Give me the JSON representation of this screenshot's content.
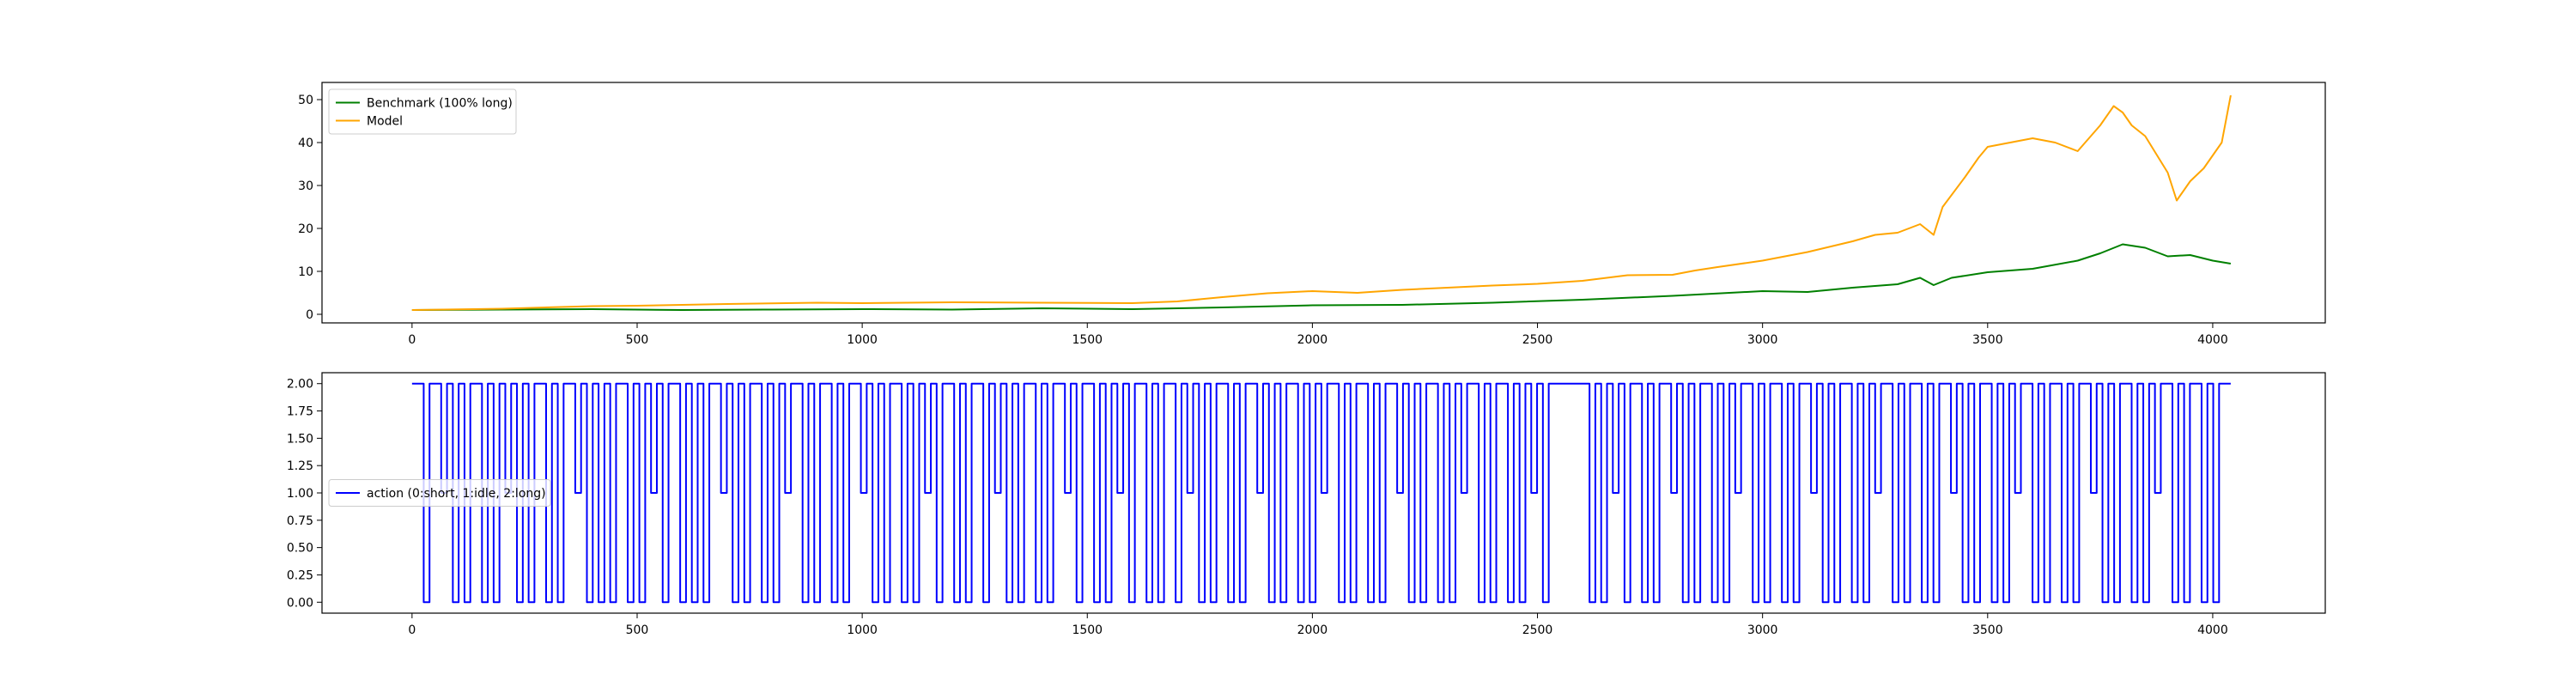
{
  "chart_data": [
    {
      "type": "line",
      "xlim": [
        -200,
        4250
      ],
      "ylim": [
        -2,
        54
      ],
      "x_ticks": [
        0,
        500,
        1000,
        1500,
        2000,
        2500,
        3000,
        3500,
        4000
      ],
      "y_ticks": [
        0,
        10,
        20,
        30,
        40,
        50
      ],
      "x_tick_labels": [
        "0",
        "500",
        "1000",
        "1500",
        "2000",
        "2500",
        "3000",
        "3500",
        "4000"
      ],
      "y_tick_labels": [
        "0",
        "10",
        "20",
        "30",
        "40",
        "50"
      ],
      "legend_position": "upper left",
      "series": [
        {
          "name": "Benchmark (100% long)",
          "color": "#008000",
          "points": [
            [
              0,
              1.0
            ],
            [
              200,
              1.1
            ],
            [
              400,
              1.2
            ],
            [
              600,
              1.0
            ],
            [
              800,
              1.1
            ],
            [
              1000,
              1.2
            ],
            [
              1200,
              1.1
            ],
            [
              1400,
              1.4
            ],
            [
              1600,
              1.2
            ],
            [
              1800,
              1.6
            ],
            [
              2000,
              2.1
            ],
            [
              2200,
              2.2
            ],
            [
              2400,
              2.7
            ],
            [
              2600,
              3.4
            ],
            [
              2800,
              4.3
            ],
            [
              3000,
              5.4
            ],
            [
              3100,
              5.2
            ],
            [
              3200,
              6.2
            ],
            [
              3300,
              7.0
            ],
            [
              3350,
              8.5
            ],
            [
              3380,
              6.8
            ],
            [
              3420,
              8.5
            ],
            [
              3500,
              9.8
            ],
            [
              3600,
              10.6
            ],
            [
              3700,
              12.5
            ],
            [
              3750,
              14.2
            ],
            [
              3800,
              16.3
            ],
            [
              3850,
              15.5
            ],
            [
              3900,
              13.5
            ],
            [
              3950,
              13.8
            ],
            [
              4000,
              12.5
            ],
            [
              4040,
              11.8
            ]
          ]
        },
        {
          "name": "Model",
          "color": "#ffa500",
          "points": [
            [
              0,
              1.0
            ],
            [
              200,
              1.3
            ],
            [
              400,
              1.9
            ],
            [
              500,
              2.0
            ],
            [
              700,
              2.4
            ],
            [
              900,
              2.7
            ],
            [
              1000,
              2.6
            ],
            [
              1200,
              2.8
            ],
            [
              1400,
              2.7
            ],
            [
              1600,
              2.6
            ],
            [
              1700,
              3.0
            ],
            [
              1800,
              4.0
            ],
            [
              1900,
              4.9
            ],
            [
              2000,
              5.4
            ],
            [
              2100,
              5.0
            ],
            [
              2200,
              5.7
            ],
            [
              2300,
              6.2
            ],
            [
              2400,
              6.7
            ],
            [
              2500,
              7.1
            ],
            [
              2600,
              7.8
            ],
            [
              2700,
              9.1
            ],
            [
              2800,
              9.2
            ],
            [
              2850,
              10.2
            ],
            [
              2900,
              11.0
            ],
            [
              3000,
              12.5
            ],
            [
              3100,
              14.5
            ],
            [
              3200,
              17.0
            ],
            [
              3250,
              18.5
            ],
            [
              3300,
              19.0
            ],
            [
              3350,
              21.0
            ],
            [
              3380,
              18.5
            ],
            [
              3400,
              25.0
            ],
            [
              3450,
              32.0
            ],
            [
              3480,
              36.5
            ],
            [
              3500,
              39.0
            ],
            [
              3550,
              40.0
            ],
            [
              3600,
              41.0
            ],
            [
              3650,
              40.0
            ],
            [
              3700,
              38.0
            ],
            [
              3750,
              44.0
            ],
            [
              3780,
              48.5
            ],
            [
              3800,
              47.0
            ],
            [
              3820,
              44.0
            ],
            [
              3850,
              41.5
            ],
            [
              3900,
              33.0
            ],
            [
              3920,
              26.5
            ],
            [
              3950,
              31.0
            ],
            [
              3980,
              34.0
            ],
            [
              4000,
              37.0
            ],
            [
              4020,
              40.0
            ],
            [
              4040,
              51.0
            ]
          ]
        }
      ]
    },
    {
      "type": "line",
      "xlim": [
        -200,
        4250
      ],
      "ylim": [
        -0.1,
        2.1
      ],
      "x_ticks": [
        0,
        500,
        1000,
        1500,
        2000,
        2500,
        3000,
        3500,
        4000
      ],
      "y_ticks": [
        0,
        0.25,
        0.5,
        0.75,
        1.0,
        1.25,
        1.5,
        1.75,
        2.0
      ],
      "x_tick_labels": [
        "0",
        "500",
        "1000",
        "1500",
        "2000",
        "2500",
        "3000",
        "3500",
        "4000"
      ],
      "y_tick_labels": [
        "0.00",
        "0.25",
        "0.50",
        "0.75",
        "1.00",
        "1.25",
        "1.50",
        "1.75",
        "2.00"
      ],
      "legend_position": "center left",
      "series": [
        {
          "name": "action (0:short, 1:idle, 2:long)",
          "color": "#0000ff",
          "step": true,
          "x_start": 0,
          "x_end": 4040,
          "values": [
            2,
            2,
            0,
            2,
            2,
            1,
            2,
            0,
            2,
            0,
            2,
            2,
            0,
            2,
            0,
            2,
            1,
            2,
            0,
            2,
            0,
            2,
            2,
            0,
            2,
            0,
            2,
            2,
            1,
            2,
            0,
            2,
            0,
            2,
            0,
            2,
            2,
            0,
            2,
            0,
            2,
            1,
            2,
            0,
            2,
            2,
            0,
            2,
            0,
            2,
            0,
            2,
            2,
            1,
            2,
            0,
            2,
            0,
            2,
            2,
            0,
            2,
            0,
            2,
            1,
            2,
            2,
            0,
            2,
            0,
            2,
            2,
            0,
            2,
            0,
            2,
            2,
            1,
            2,
            0,
            2,
            0,
            2,
            2,
            0,
            2,
            0,
            2,
            1,
            2,
            0,
            2,
            2,
            0,
            2,
            0,
            2,
            2,
            0,
            2,
            1,
            2,
            0,
            2,
            0,
            2,
            2,
            0,
            2,
            0,
            2,
            2,
            1,
            2,
            0,
            2,
            2,
            0,
            2,
            0,
            2,
            1,
            2,
            0,
            2,
            2,
            0,
            2,
            0,
            2,
            2,
            0,
            2,
            1,
            2,
            0,
            2,
            0,
            2,
            2,
            0,
            2,
            0,
            2,
            2,
            1,
            2,
            0,
            2,
            0,
            2,
            2,
            0,
            2,
            0,
            2,
            1,
            2,
            2,
            0,
            2,
            0,
            2,
            2,
            0,
            2,
            0,
            2,
            2,
            1,
            2,
            0,
            2,
            0,
            2,
            2,
            0,
            2,
            0,
            2,
            1,
            2,
            2,
            0,
            2,
            0,
            2,
            2,
            0,
            2,
            0,
            2,
            1,
            2,
            0,
            2,
            2,
            2,
            2,
            2,
            2,
            2,
            0,
            2,
            0,
            2,
            1,
            2,
            0,
            2,
            2,
            0,
            2,
            0,
            2,
            2,
            1,
            2,
            0,
            2,
            0,
            2,
            2,
            0,
            2,
            0,
            2,
            1,
            2,
            2,
            0,
            2,
            0,
            2,
            2,
            0,
            2,
            0,
            2,
            2,
            1,
            2,
            0,
            2,
            0,
            2,
            2,
            0,
            2,
            0,
            2,
            1,
            2,
            2,
            0,
            2,
            0,
            2,
            2,
            0,
            2,
            0,
            2,
            2,
            1,
            2,
            0,
            2,
            0,
            2,
            2,
            0,
            2,
            0,
            2,
            1,
            2,
            2,
            0,
            2,
            0,
            2,
            2,
            0,
            2,
            0,
            2,
            2,
            1,
            2,
            0,
            2,
            0,
            2,
            2,
            0,
            2,
            0,
            2,
            1,
            2,
            2,
            0,
            2,
            0,
            2,
            2,
            0,
            2,
            0,
            2,
            2
          ]
        }
      ]
    }
  ]
}
